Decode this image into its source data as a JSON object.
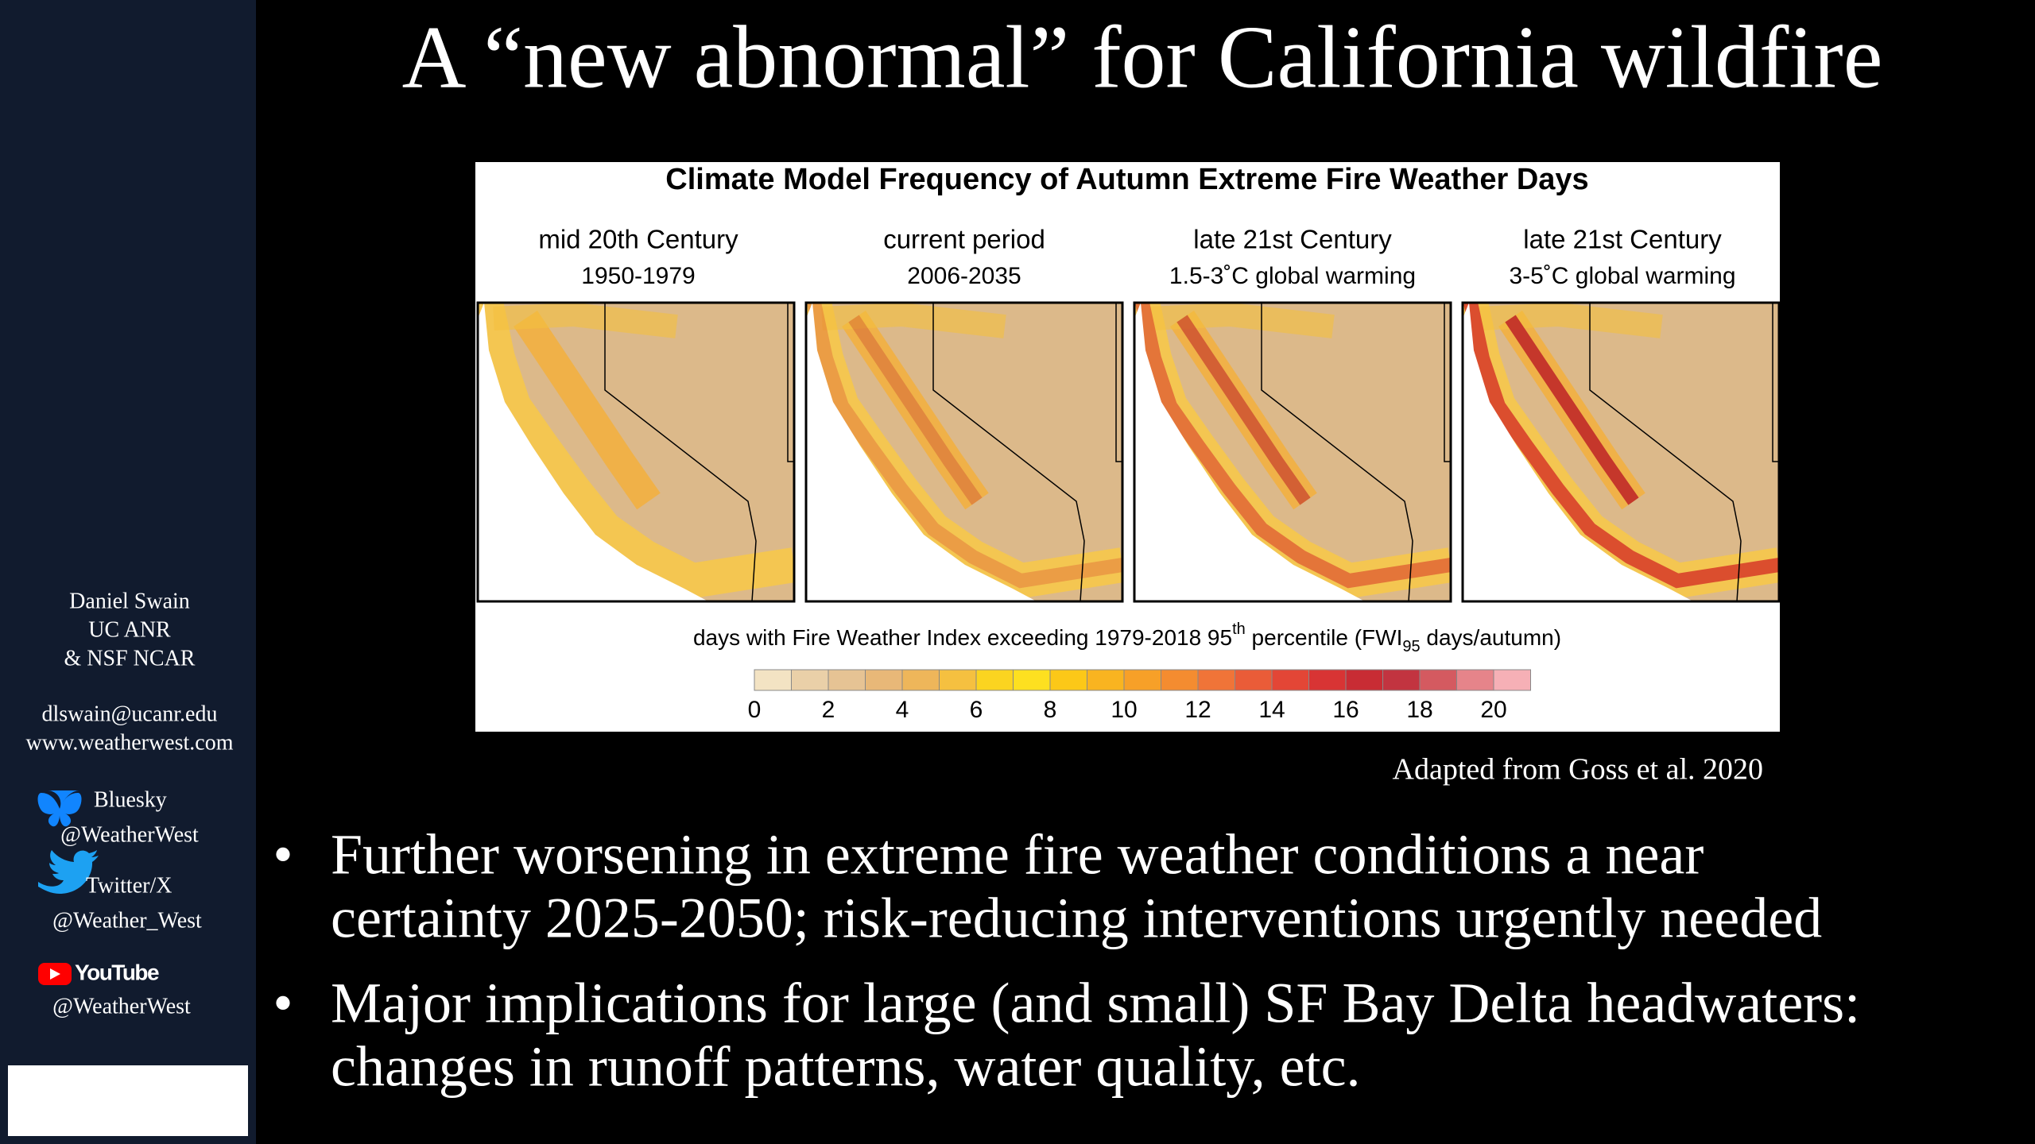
{
  "title": "A “new abnormal”  for California wildfire",
  "sidebar": {
    "author": [
      "Daniel Swain",
      "UC ANR",
      "& NSF NCAR"
    ],
    "contact": [
      "dlswain@ucanr.edu",
      "www.weatherwest.com"
    ],
    "social": [
      {
        "platform": "Bluesky",
        "handle": "@WeatherWest"
      },
      {
        "platform": "Twitter/X",
        "handle": "@Weather_West"
      },
      {
        "platform": "YouTube",
        "handle": "@WeatherWest"
      }
    ]
  },
  "figure": {
    "title": "Climate Model Frequency of Autumn Extreme Fire Weather Days",
    "panels": [
      {
        "heading": "mid 20th Century",
        "period": "1950-1979"
      },
      {
        "heading": "current period",
        "period": "2006-2035"
      },
      {
        "heading": "late 21st Century",
        "period": "1.5-3˚C global warming"
      },
      {
        "heading": "late 21st Century",
        "period": "3-5˚C global warming"
      }
    ],
    "caption": [
      "days with Fire Weather Index exceeding 1979-2018 95",
      "th",
      " percentile (FWI",
      "95",
      " days/autumn)"
    ],
    "colorbar": {
      "colors": [
        "#f3e3c3",
        "#ead0a8",
        "#e6c394",
        "#e8b878",
        "#eeb65a",
        "#f5c040",
        "#fbd420",
        "#fde020",
        "#fcc818",
        "#f9b420",
        "#f7a028",
        "#f48c30",
        "#f07438",
        "#ea5c38",
        "#e34636",
        "#d83434",
        "#c82c34",
        "#c23440",
        "#d45a60",
        "#e6848a",
        "#f6b0b6"
      ],
      "ticks": [
        0,
        2,
        4,
        6,
        8,
        10,
        12,
        14,
        16,
        18,
        20
      ]
    },
    "credit": "Adapted from Goss et al. 2020"
  },
  "bullets": [
    [
      "Further worsening in extreme fire weather conditions a near",
      "certainty 2025-2050; risk-reducing interventions urgently needed"
    ],
    [
      "Major implications for large (and small) SF Bay Delta headwaters:",
      "changes in runoff patterns, water quality, etc."
    ]
  ]
}
